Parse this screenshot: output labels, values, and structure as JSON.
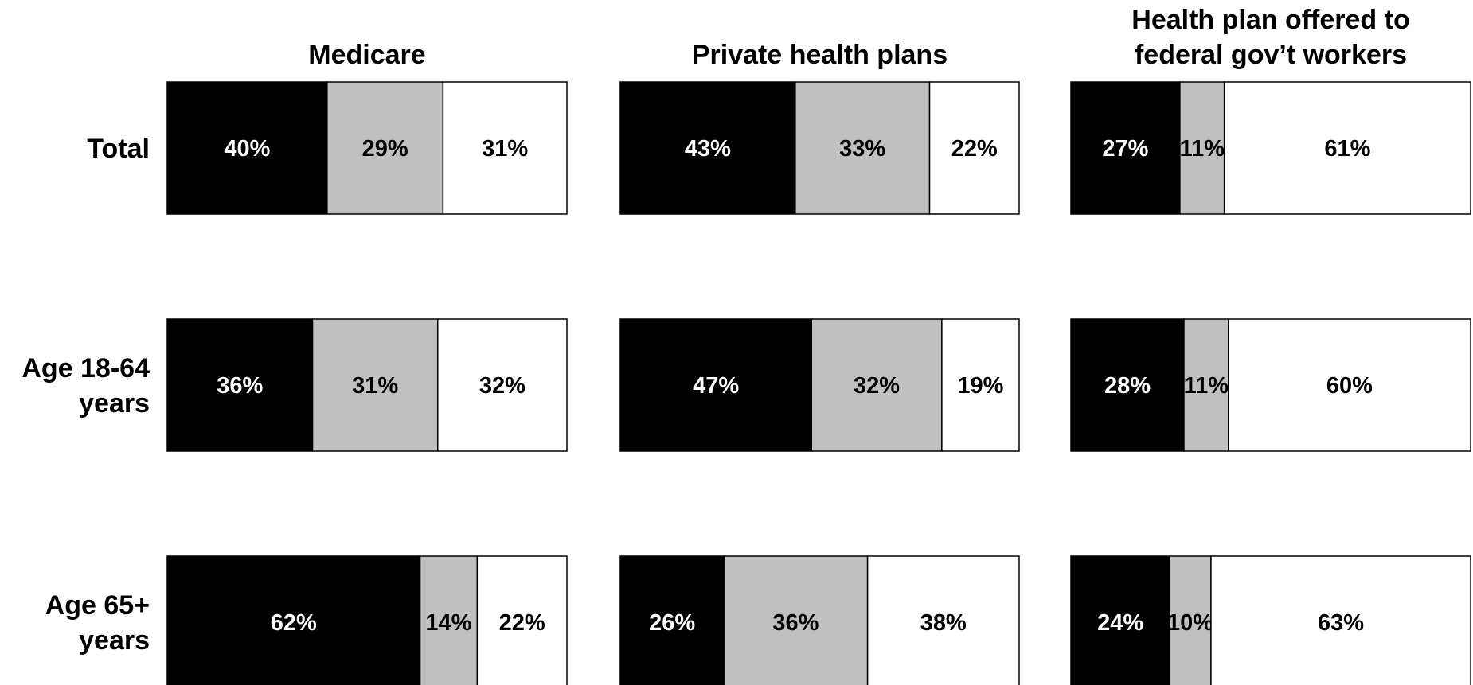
{
  "chart_data": {
    "type": "bar",
    "orientation": "horizontal",
    "stacked": true,
    "normalized": true,
    "grid": false,
    "legend": "none",
    "colors": [
      "#000000",
      "#c0c0c0",
      "#ffffff"
    ],
    "categories": [
      "Total",
      "Age 18-64 years",
      "Age 65+ years"
    ],
    "row_labels": [
      [
        "Total"
      ],
      [
        "Age 18-64",
        "years"
      ],
      [
        "Age 65+",
        "years"
      ]
    ],
    "panels": [
      {
        "title": [
          "Medicare"
        ],
        "rows": [
          [
            40,
            29,
            31
          ],
          [
            36,
            31,
            32
          ],
          [
            62,
            14,
            22
          ]
        ]
      },
      {
        "title": [
          "Private health plans"
        ],
        "rows": [
          [
            43,
            33,
            22
          ],
          [
            47,
            32,
            19
          ],
          [
            26,
            36,
            38
          ]
        ]
      },
      {
        "title": [
          "Health plan offered to",
          "federal gov’t workers"
        ],
        "rows": [
          [
            27,
            11,
            61
          ],
          [
            28,
            11,
            60
          ],
          [
            24,
            10,
            63
          ]
        ]
      }
    ]
  }
}
